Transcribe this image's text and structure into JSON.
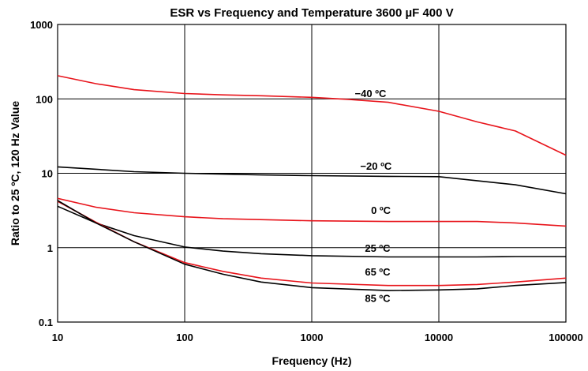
{
  "chart_data": {
    "type": "line",
    "title": "ESR vs Frequency  and Temperature 3600 µF 400 V",
    "xlabel": "Frequency  (Hz)",
    "ylabel": "Ratio to 25 ºC, 120 Hz Value",
    "xscale": "log",
    "yscale": "log",
    "xlim": [
      10,
      100000
    ],
    "ylim": [
      0.1,
      1000
    ],
    "grid": true,
    "x_ticks": [
      {
        "value": 10,
        "label": "10"
      },
      {
        "value": 100,
        "label": "100"
      },
      {
        "value": 1000,
        "label": "1000"
      },
      {
        "value": 10000,
        "label": "10000"
      },
      {
        "value": 100000,
        "label": "100000"
      }
    ],
    "y_ticks": [
      {
        "value": 1000,
        "label": "1000"
      },
      {
        "value": 100,
        "label": "100"
      },
      {
        "value": 10,
        "label": "10"
      },
      {
        "value": 1,
        "label": "1"
      },
      {
        "value": 0.1,
        "label": "0.1"
      }
    ],
    "series": [
      {
        "name": "−40 ºC",
        "color": "#e8141b",
        "label_at": [
          2900,
          120
        ],
        "points": [
          [
            10,
            205
          ],
          [
            20,
            160
          ],
          [
            40,
            133
          ],
          [
            100,
            118
          ],
          [
            200,
            113
          ],
          [
            400,
            110
          ],
          [
            1000,
            105
          ],
          [
            2000,
            98
          ],
          [
            4000,
            90
          ],
          [
            10000,
            68
          ],
          [
            20000,
            49
          ],
          [
            40000,
            37
          ],
          [
            100000,
            17.5
          ]
        ]
      },
      {
        "name": "−20 ºC",
        "color": "#000000",
        "label_at": [
          3200,
          12.6
        ],
        "points": [
          [
            10,
            12.2
          ],
          [
            40,
            10.5
          ],
          [
            100,
            10
          ],
          [
            400,
            9.5
          ],
          [
            1000,
            9.3
          ],
          [
            4000,
            9.1
          ],
          [
            10000,
            9.0
          ],
          [
            40000,
            7.0
          ],
          [
            100000,
            5.3
          ]
        ]
      },
      {
        "name": "0 ºC",
        "color": "#e8141b",
        "label_at": [
          3500,
          3.2
        ],
        "points": [
          [
            10,
            4.6
          ],
          [
            20,
            3.5
          ],
          [
            40,
            2.95
          ],
          [
            100,
            2.6
          ],
          [
            200,
            2.45
          ],
          [
            1000,
            2.3
          ],
          [
            4000,
            2.25
          ],
          [
            10000,
            2.25
          ],
          [
            20000,
            2.25
          ],
          [
            40000,
            2.15
          ],
          [
            100000,
            1.95
          ]
        ]
      },
      {
        "name": "25 ºC",
        "color": "#000000",
        "label_at": [
          3300,
          1.0
        ],
        "points": [
          [
            10,
            3.6
          ],
          [
            20,
            2.15
          ],
          [
            40,
            1.45
          ],
          [
            100,
            1.02
          ],
          [
            200,
            0.9
          ],
          [
            400,
            0.83
          ],
          [
            1000,
            0.78
          ],
          [
            4000,
            0.75
          ],
          [
            10000,
            0.75
          ],
          [
            20000,
            0.75
          ],
          [
            40000,
            0.76
          ],
          [
            100000,
            0.76
          ]
        ]
      },
      {
        "name": "65 ºC",
        "color": "#e8141b",
        "label_at": [
          3300,
          0.48
        ],
        "points": [
          [
            10,
            4.2
          ],
          [
            20,
            2.2
          ],
          [
            40,
            1.2
          ],
          [
            100,
            0.63
          ],
          [
            200,
            0.48
          ],
          [
            400,
            0.39
          ],
          [
            1000,
            0.335
          ],
          [
            4000,
            0.31
          ],
          [
            10000,
            0.31
          ],
          [
            20000,
            0.32
          ],
          [
            40000,
            0.345
          ],
          [
            100000,
            0.39
          ]
        ]
      },
      {
        "name": "85 ºC",
        "color": "#000000",
        "label_at": [
          3300,
          0.21
        ],
        "points": [
          [
            10,
            4.3
          ],
          [
            20,
            2.15
          ],
          [
            40,
            1.2
          ],
          [
            100,
            0.6
          ],
          [
            200,
            0.44
          ],
          [
            400,
            0.345
          ],
          [
            1000,
            0.29
          ],
          [
            4000,
            0.265
          ],
          [
            10000,
            0.27
          ],
          [
            20000,
            0.28
          ],
          [
            40000,
            0.31
          ],
          [
            100000,
            0.34
          ]
        ]
      }
    ]
  }
}
